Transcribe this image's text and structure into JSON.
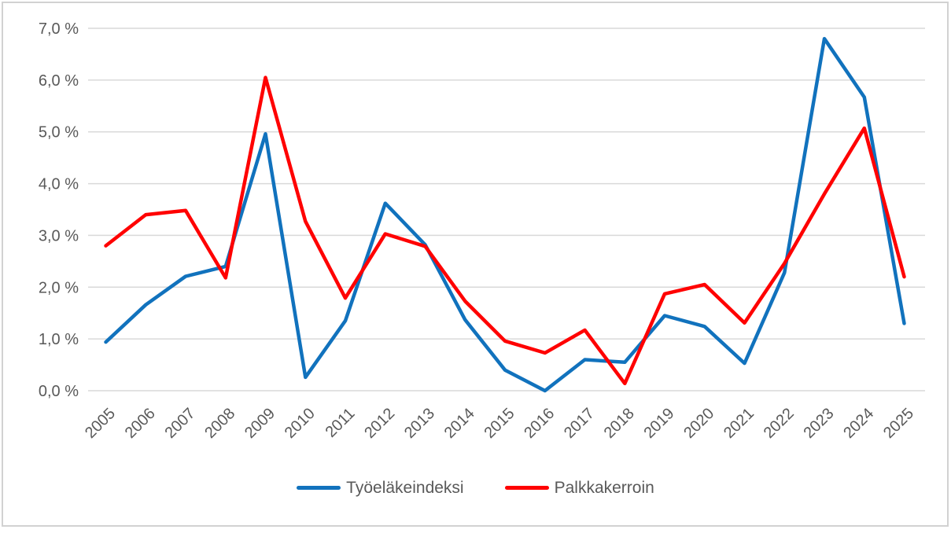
{
  "chart_data": {
    "type": "line",
    "title": "",
    "categories": [
      "2005",
      "2006",
      "2007",
      "2008",
      "2009",
      "2010",
      "2011",
      "2012",
      "2013",
      "2014",
      "2015",
      "2016",
      "2017",
      "2018",
      "2019",
      "2020",
      "2021",
      "2022",
      "2023",
      "2024",
      "2025"
    ],
    "series": [
      {
        "name": "Työeläkeindeksi",
        "color": "#1172bd",
        "values": [
          0.94,
          1.66,
          2.21,
          2.4,
          4.96,
          0.26,
          1.35,
          3.62,
          2.82,
          1.37,
          0.4,
          0.0,
          0.6,
          0.55,
          1.45,
          1.24,
          0.53,
          2.28,
          6.8,
          5.67,
          1.3
        ]
      },
      {
        "name": "Palkkakerroin",
        "color": "#ff0000",
        "values": [
          2.8,
          3.4,
          3.48,
          2.18,
          6.05,
          3.27,
          1.79,
          3.03,
          2.79,
          1.73,
          0.96,
          0.73,
          1.17,
          0.14,
          1.87,
          2.05,
          1.31,
          2.46,
          3.8,
          5.07,
          2.2
        ]
      }
    ],
    "value_unit": "%",
    "ylim": [
      0,
      7
    ],
    "y_tick_step": 1,
    "y_tick_labels": [
      "0,0 %",
      "1,0 %",
      "2,0 %",
      "3,0 %",
      "4,0 %",
      "5,0 %",
      "6,0 %",
      "7,0 %"
    ],
    "grid": true,
    "x_label_rotation": -45,
    "legend_position": "bottom"
  },
  "styles": {
    "grid_color": "#d9d9d9",
    "axis_text_color": "#595959",
    "background_color": "#ffffff",
    "border_color": "#d2d2d2"
  }
}
